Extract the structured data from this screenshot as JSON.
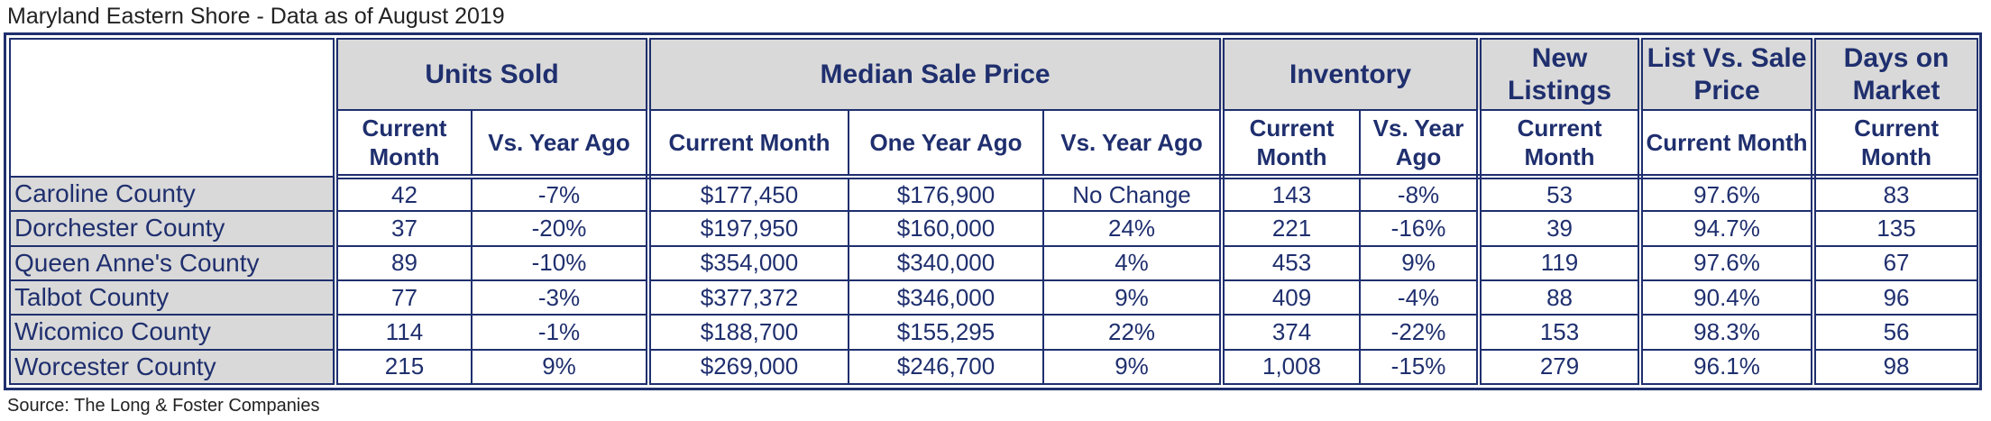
{
  "caption": "Maryland Eastern Shore - Data as of August 2019",
  "source": "Source: The Long & Foster Companies",
  "headers": {
    "units_sold": "Units Sold",
    "median_sale_price": "Median Sale Price",
    "inventory": "Inventory",
    "new_listings": "New Listings",
    "list_vs_sale": "List Vs. Sale Price",
    "days_on_market": "Days on Market",
    "current_month": "Current Month",
    "vs_year_ago": "Vs. Year Ago",
    "one_year_ago": "One Year Ago"
  },
  "rows": [
    {
      "county": "Caroline County",
      "units": "42",
      "units_vs": "-7%",
      "median": "$177,450",
      "median_prev": "$176,900",
      "median_vs": "No Change",
      "inventory": "143",
      "inventory_vs": "-8%",
      "new_listings": "53",
      "list_vs_sale": "97.6%",
      "dom": "83"
    },
    {
      "county": "Dorchester County",
      "units": "37",
      "units_vs": "-20%",
      "median": "$197,950",
      "median_prev": "$160,000",
      "median_vs": "24%",
      "inventory": "221",
      "inventory_vs": "-16%",
      "new_listings": "39",
      "list_vs_sale": "94.7%",
      "dom": "135"
    },
    {
      "county": "Queen Anne's County",
      "units": "89",
      "units_vs": "-10%",
      "median": "$354,000",
      "median_prev": "$340,000",
      "median_vs": "4%",
      "inventory": "453",
      "inventory_vs": "9%",
      "new_listings": "119",
      "list_vs_sale": "97.6%",
      "dom": "67"
    },
    {
      "county": "Talbot County",
      "units": "77",
      "units_vs": "-3%",
      "median": "$377,372",
      "median_prev": "$346,000",
      "median_vs": "9%",
      "inventory": "409",
      "inventory_vs": "-4%",
      "new_listings": "88",
      "list_vs_sale": "90.4%",
      "dom": "96"
    },
    {
      "county": "Wicomico County",
      "units": "114",
      "units_vs": "-1%",
      "median": "$188,700",
      "median_prev": "$155,295",
      "median_vs": "22%",
      "inventory": "374",
      "inventory_vs": "-22%",
      "new_listings": "153",
      "list_vs_sale": "98.3%",
      "dom": "56"
    },
    {
      "county": "Worcester County",
      "units": "215",
      "units_vs": "9%",
      "median": "$269,000",
      "median_prev": "$246,700",
      "median_vs": "9%",
      "inventory": "1,008",
      "inventory_vs": "-15%",
      "new_listings": "279",
      "list_vs_sale": "96.1%",
      "dom": "98"
    }
  ]
}
